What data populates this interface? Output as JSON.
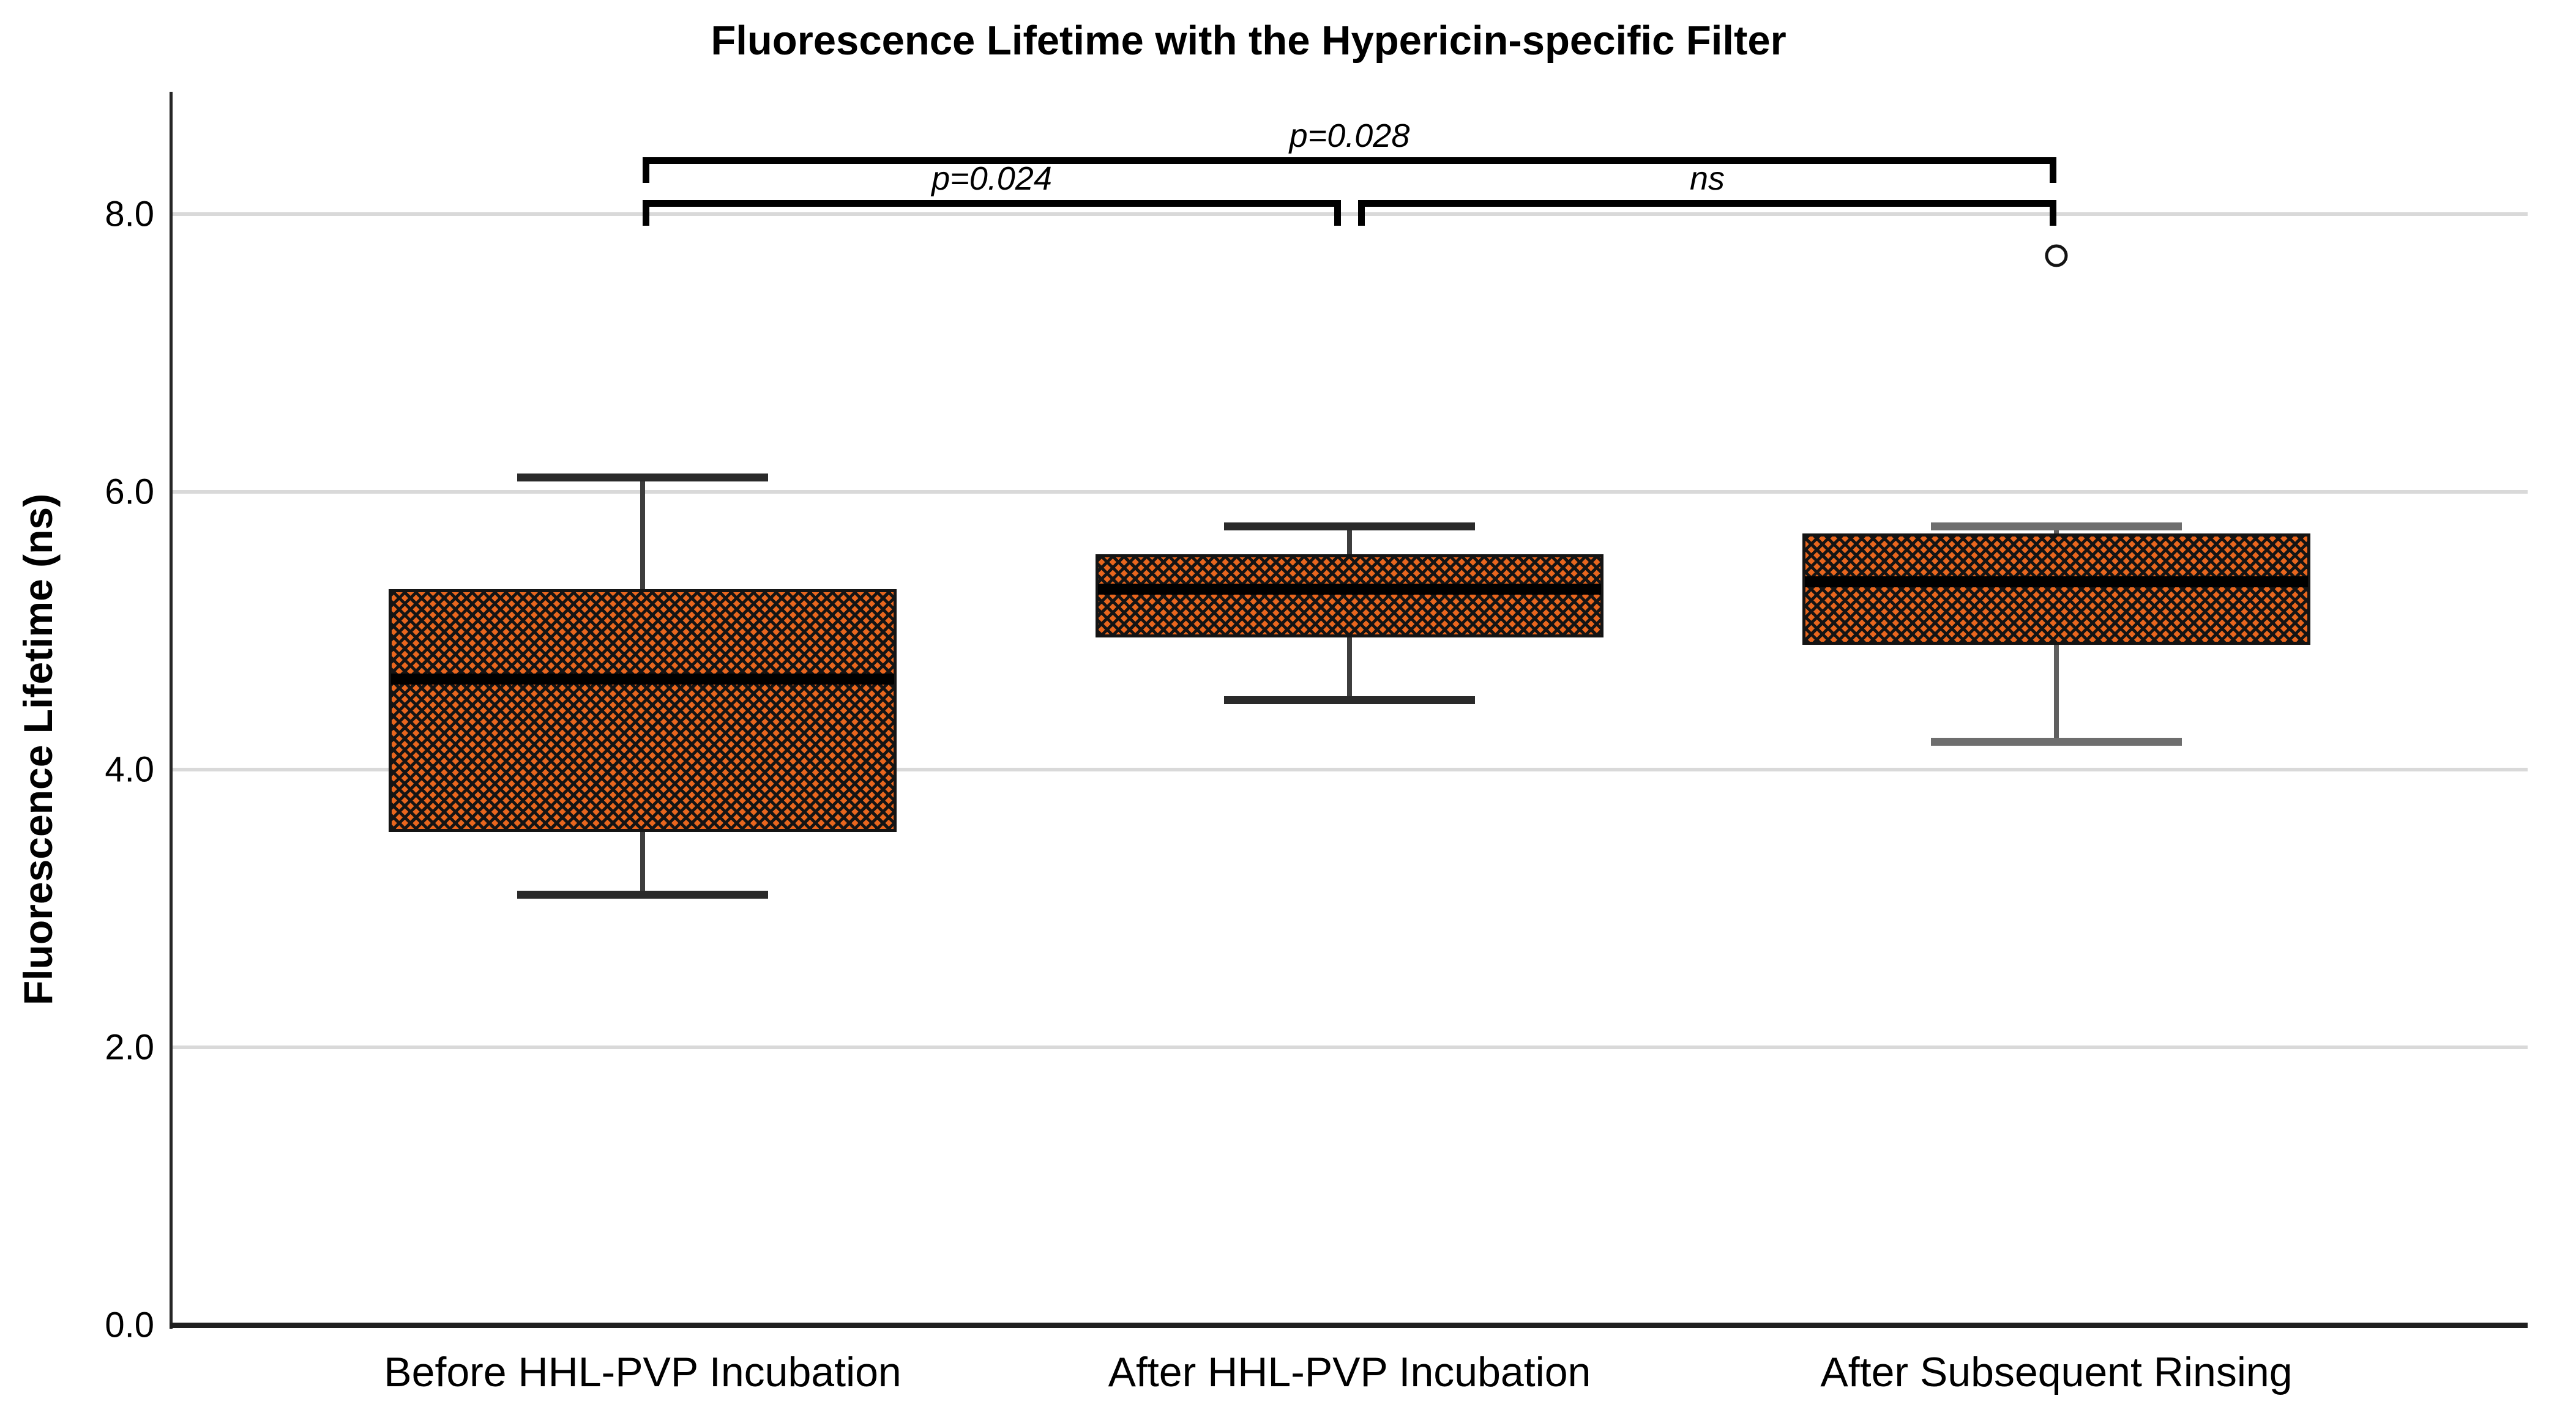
{
  "title": "Fluorescence Lifetime with the Hypericin-specific Filter",
  "chart_data": {
    "type": "box",
    "title": "Fluorescence Lifetime with the Hypericin-specific Filter",
    "xlabel": "",
    "ylabel": "Fluorescence Lifetime (ns)",
    "ylim": [
      0,
      8.88
    ],
    "yticks": [
      0,
      2,
      4,
      6,
      8
    ],
    "ytick_labels": [
      "0.0",
      "2.0",
      "4.0",
      "6.0",
      "8.0"
    ],
    "grid": true,
    "legend": "none",
    "categories": [
      "Before HHL-PVP Incubation",
      "After HHL-PVP Incubation",
      "After Subsequent Rinsing"
    ],
    "boxes": [
      {
        "category": "Before HHL-PVP Incubation",
        "whisker_low": 3.1,
        "q1": 3.55,
        "median": 4.65,
        "q3": 5.3,
        "whisker_high": 6.1,
        "outliers": [],
        "whisker_color": "#3d3d3d",
        "cap_color": "#2a2a2a"
      },
      {
        "category": "After HHL-PVP Incubation",
        "whisker_low": 4.5,
        "q1": 4.95,
        "median": 5.3,
        "q3": 5.55,
        "whisker_high": 5.75,
        "outliers": [],
        "whisker_color": "#3d3d3d",
        "cap_color": "#2a2a2a"
      },
      {
        "category": "After Subsequent Rinsing",
        "whisker_low": 4.2,
        "q1": 4.9,
        "median": 5.35,
        "q3": 5.7,
        "whisker_high": 5.75,
        "outliers": [
          7.7
        ],
        "whisker_color": "#5f5f5f",
        "cap_color": "#6e6e6e"
      }
    ],
    "significance_brackets": [
      {
        "label": "p=0.028",
        "from": 0,
        "to": 2,
        "level": 1
      },
      {
        "label": "p=0.024",
        "from": 0,
        "to": 1,
        "level": 2
      },
      {
        "label": "ns",
        "from": 1,
        "to": 2,
        "level": 2
      }
    ],
    "outlier_marker": "open-circle",
    "colors": {
      "box_fill": "#E8661E",
      "hatch": "#141414",
      "box_border": "#141414",
      "median": "#000000",
      "grid": "#D9D9D9",
      "axis": "#262626",
      "bracket": "#000000",
      "text": "#000000"
    }
  }
}
